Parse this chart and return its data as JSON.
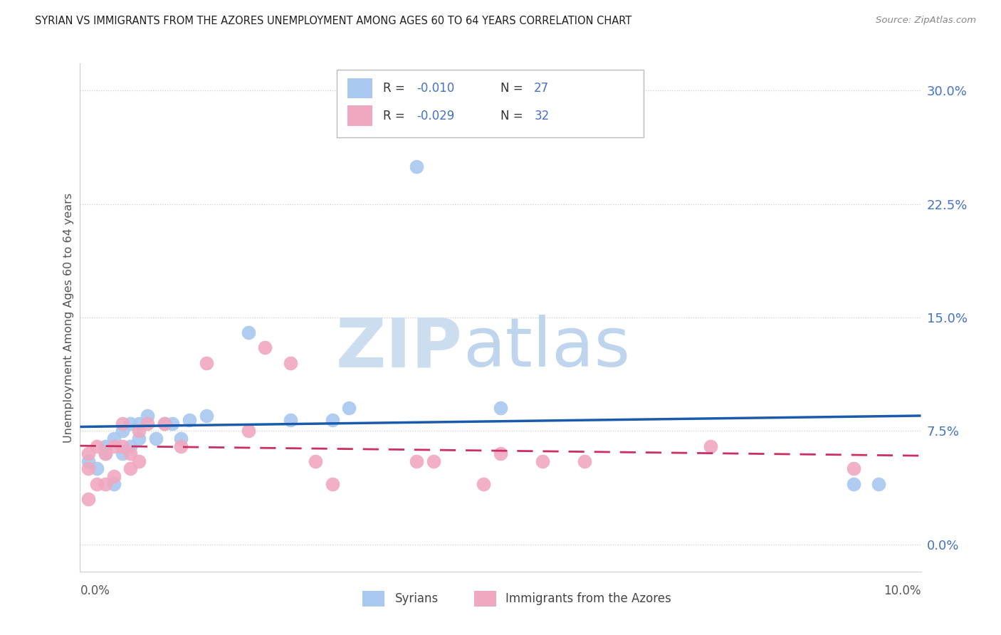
{
  "title": "SYRIAN VS IMMIGRANTS FROM THE AZORES UNEMPLOYMENT AMONG AGES 60 TO 64 YEARS CORRELATION CHART",
  "source": "Source: ZipAtlas.com",
  "ylabel": "Unemployment Among Ages 60 to 64 years",
  "ytick_values": [
    0.0,
    0.075,
    0.15,
    0.225,
    0.3
  ],
  "xlim": [
    0.0,
    0.1
  ],
  "ylim": [
    -0.018,
    0.318
  ],
  "r_blue": "-0.010",
  "n_blue": "27",
  "r_pink": "-0.029",
  "n_pink": "32",
  "bottom_legend1": "Syrians",
  "bottom_legend2": "Immigrants from the Azores",
  "color_blue_scatter": "#a8c8f0",
  "color_pink_scatter": "#f0a8c0",
  "color_blue_line": "#1a5aaa",
  "color_pink_line": "#cc3060",
  "color_right_axis": "#4472c4",
  "watermark_zip_color": "#ccddf0",
  "watermark_atlas_color": "#a8c8e8",
  "grid_color": "#cccccc",
  "background_color": "#ffffff",
  "title_color": "#202020",
  "syrians_x": [
    0.001,
    0.002,
    0.003,
    0.003,
    0.004,
    0.004,
    0.005,
    0.005,
    0.006,
    0.006,
    0.007,
    0.007,
    0.008,
    0.009,
    0.01,
    0.011,
    0.012,
    0.013,
    0.015,
    0.02,
    0.025,
    0.03,
    0.032,
    0.04,
    0.05,
    0.092,
    0.095
  ],
  "syrians_y": [
    0.055,
    0.05,
    0.06,
    0.065,
    0.07,
    0.04,
    0.075,
    0.06,
    0.08,
    0.065,
    0.07,
    0.08,
    0.085,
    0.07,
    0.08,
    0.08,
    0.07,
    0.082,
    0.085,
    0.14,
    0.082,
    0.082,
    0.09,
    0.25,
    0.09,
    0.04,
    0.04
  ],
  "azores_x": [
    0.001,
    0.001,
    0.001,
    0.002,
    0.002,
    0.003,
    0.003,
    0.004,
    0.004,
    0.005,
    0.005,
    0.006,
    0.006,
    0.007,
    0.007,
    0.008,
    0.01,
    0.012,
    0.015,
    0.02,
    0.022,
    0.025,
    0.028,
    0.03,
    0.04,
    0.042,
    0.048,
    0.05,
    0.055,
    0.06,
    0.075,
    0.092
  ],
  "azores_y": [
    0.06,
    0.05,
    0.03,
    0.065,
    0.04,
    0.06,
    0.04,
    0.065,
    0.045,
    0.065,
    0.08,
    0.06,
    0.05,
    0.075,
    0.055,
    0.08,
    0.08,
    0.065,
    0.12,
    0.075,
    0.13,
    0.12,
    0.055,
    0.04,
    0.055,
    0.055,
    0.04,
    0.06,
    0.055,
    0.055,
    0.065,
    0.05
  ]
}
